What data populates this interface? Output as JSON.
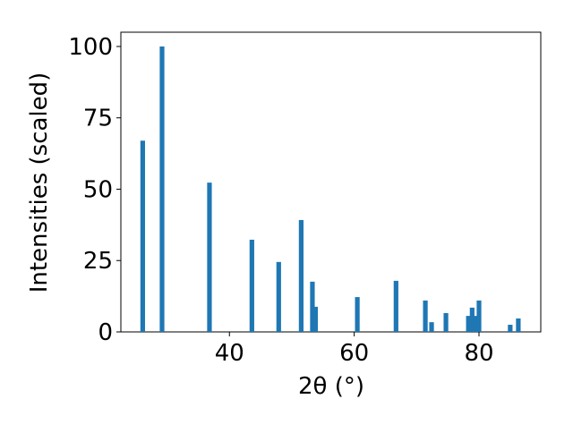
{
  "chart_data": {
    "type": "bar",
    "x": [
      26.1,
      29.2,
      36.8,
      43.6,
      47.9,
      51.5,
      53.3,
      53.8,
      60.5,
      66.7,
      71.4,
      72.4,
      74.7,
      78.3,
      78.9,
      79.4,
      80.0,
      85.0,
      86.3
    ],
    "values": [
      67,
      100,
      52.3,
      32.3,
      24.5,
      39.2,
      17.6,
      8.8,
      12.2,
      17.9,
      11.0,
      3.4,
      6.6,
      5.6,
      8.5,
      5.6,
      11.0,
      2.5,
      4.7
    ],
    "color": "#1f77b4",
    "xlabel": "2θ (°)",
    "ylabel": "Intensities (scaled)",
    "xlim": [
      22.6,
      89.9
    ],
    "ylim": [
      0,
      105
    ],
    "xticks": [
      40,
      60,
      80
    ],
    "yticks": [
      0,
      25,
      50,
      75,
      100
    ]
  }
}
